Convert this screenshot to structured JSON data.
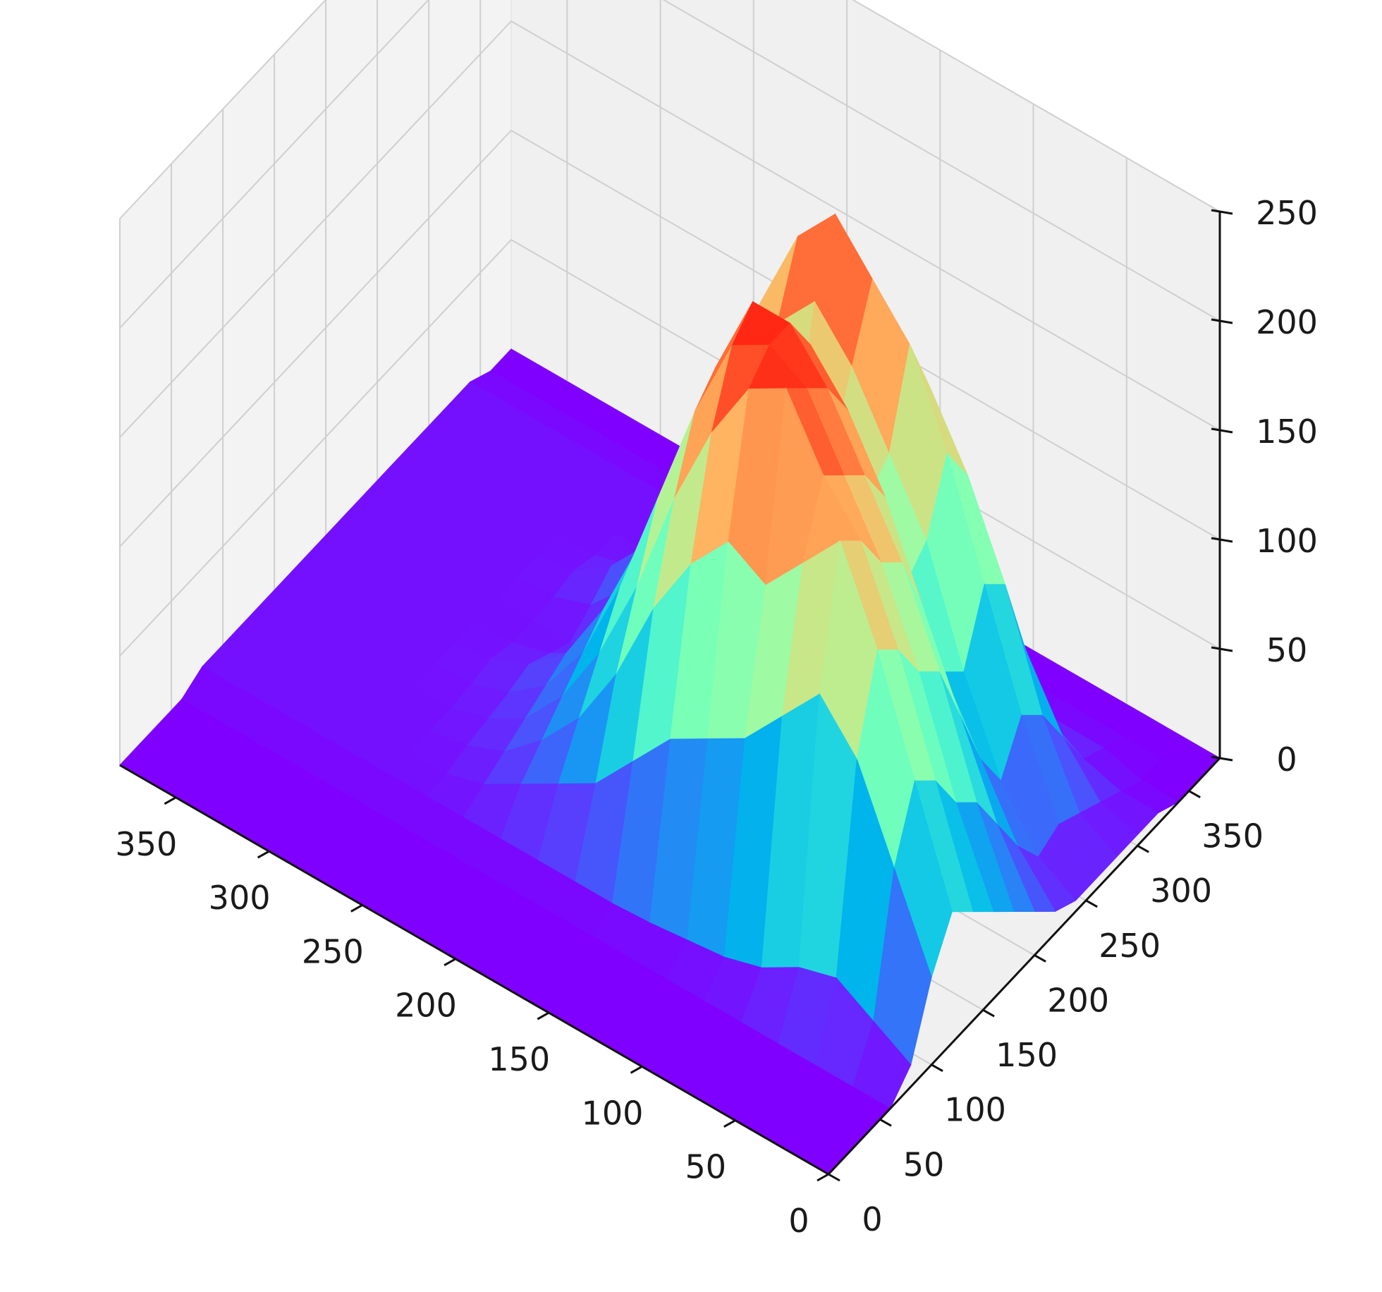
{
  "chart_data": {
    "type": "surface3d",
    "title": "",
    "xlabel": "",
    "ylabel": "",
    "zlabel": "",
    "colormap": "rainbow",
    "grid": true,
    "x_ticks": [
      "0",
      "50",
      "100",
      "150",
      "200",
      "250",
      "300",
      "350"
    ],
    "y_ticks": [
      "0",
      "50",
      "100",
      "150",
      "200",
      "250",
      "300",
      "350"
    ],
    "z_ticks": [
      "0",
      "50",
      "100",
      "150",
      "200",
      "250"
    ],
    "xlim": [
      0,
      380
    ],
    "ylim": [
      0,
      380
    ],
    "zlim": [
      0,
      250
    ],
    "surface": {
      "x": [
        0,
        20,
        40,
        60,
        80,
        100,
        120,
        140,
        160,
        180,
        200,
        220,
        240,
        260,
        280,
        300,
        320,
        340,
        360,
        380
      ],
      "y": [
        0,
        20,
        40,
        60,
        80,
        100,
        120,
        140,
        160,
        180,
        200,
        220,
        240,
        260,
        280,
        300,
        320,
        340,
        360,
        380
      ],
      "z": [
        [
          0,
          0,
          0,
          0,
          0,
          0,
          0,
          0,
          0,
          0,
          0,
          0,
          0,
          0,
          0,
          0,
          0,
          0,
          0,
          0
        ],
        [
          0,
          0,
          0,
          0,
          0,
          0,
          0,
          0,
          0,
          0,
          0,
          0,
          0,
          0,
          0,
          0,
          0,
          0,
          0,
          0
        ],
        [
          0,
          0,
          0,
          0,
          0,
          0,
          0,
          0,
          0,
          0,
          0,
          0,
          0,
          0,
          0,
          0,
          0,
          0,
          0,
          0
        ],
        [
          0,
          0,
          0,
          0,
          0,
          0,
          0,
          0,
          0,
          0,
          0,
          0,
          0,
          0,
          0,
          0,
          0,
          0,
          0,
          0
        ],
        [
          10,
          20,
          30,
          25,
          15,
          10,
          8,
          6,
          5,
          5,
          5,
          5,
          5,
          5,
          5,
          5,
          5,
          5,
          5,
          5
        ],
        [
          40,
          80,
          120,
          140,
          120,
          100,
          90,
          80,
          60,
          40,
          30,
          20,
          10,
          5,
          5,
          5,
          5,
          5,
          5,
          5
        ],
        [
          60,
          110,
          160,
          200,
          180,
          160,
          170,
          150,
          120,
          80,
          50,
          30,
          15,
          8,
          5,
          5,
          5,
          5,
          5,
          5
        ],
        [
          50,
          100,
          150,
          190,
          210,
          240,
          230,
          200,
          160,
          110,
          70,
          40,
          20,
          10,
          5,
          5,
          5,
          5,
          5,
          5
        ],
        [
          40,
          80,
          130,
          170,
          200,
          230,
          240,
          230,
          190,
          140,
          90,
          50,
          25,
          12,
          6,
          5,
          5,
          5,
          5,
          5
        ],
        [
          30,
          70,
          120,
          160,
          190,
          220,
          240,
          240,
          200,
          150,
          100,
          60,
          30,
          15,
          8,
          5,
          5,
          5,
          5,
          5
        ],
        [
          20,
          50,
          90,
          130,
          170,
          200,
          220,
          210,
          180,
          130,
          80,
          45,
          20,
          10,
          5,
          5,
          5,
          5,
          5,
          5
        ],
        [
          10,
          30,
          60,
          90,
          120,
          150,
          160,
          150,
          120,
          80,
          45,
          20,
          10,
          5,
          5,
          5,
          5,
          5,
          5,
          5
        ],
        [
          5,
          15,
          40,
          80,
          130,
          160,
          190,
          210,
          190,
          150,
          100,
          60,
          30,
          12,
          6,
          5,
          5,
          5,
          5,
          5
        ],
        [
          5,
          20,
          60,
          110,
          160,
          200,
          220,
          240,
          220,
          180,
          130,
          80,
          40,
          20,
          8,
          5,
          5,
          5,
          5,
          5
        ],
        [
          5,
          15,
          50,
          100,
          140,
          170,
          180,
          170,
          150,
          120,
          80,
          50,
          25,
          10,
          5,
          5,
          5,
          5,
          5,
          5
        ],
        [
          5,
          10,
          30,
          60,
          90,
          110,
          120,
          110,
          90,
          60,
          35,
          15,
          8,
          5,
          5,
          5,
          5,
          5,
          5,
          5
        ],
        [
          5,
          5,
          10,
          20,
          30,
          35,
          35,
          30,
          20,
          10,
          5,
          5,
          5,
          5,
          5,
          5,
          5,
          5,
          5,
          5
        ],
        [
          0,
          0,
          5,
          5,
          5,
          5,
          5,
          5,
          5,
          5,
          5,
          5,
          5,
          5,
          5,
          5,
          5,
          5,
          5,
          5
        ],
        [
          0,
          0,
          0,
          0,
          0,
          0,
          0,
          0,
          0,
          0,
          0,
          0,
          0,
          0,
          0,
          0,
          0,
          0,
          0,
          0
        ],
        [
          0,
          0,
          0,
          0,
          0,
          0,
          0,
          0,
          0,
          0,
          0,
          0,
          0,
          0,
          0,
          0,
          0,
          0,
          0,
          0
        ]
      ]
    }
  }
}
